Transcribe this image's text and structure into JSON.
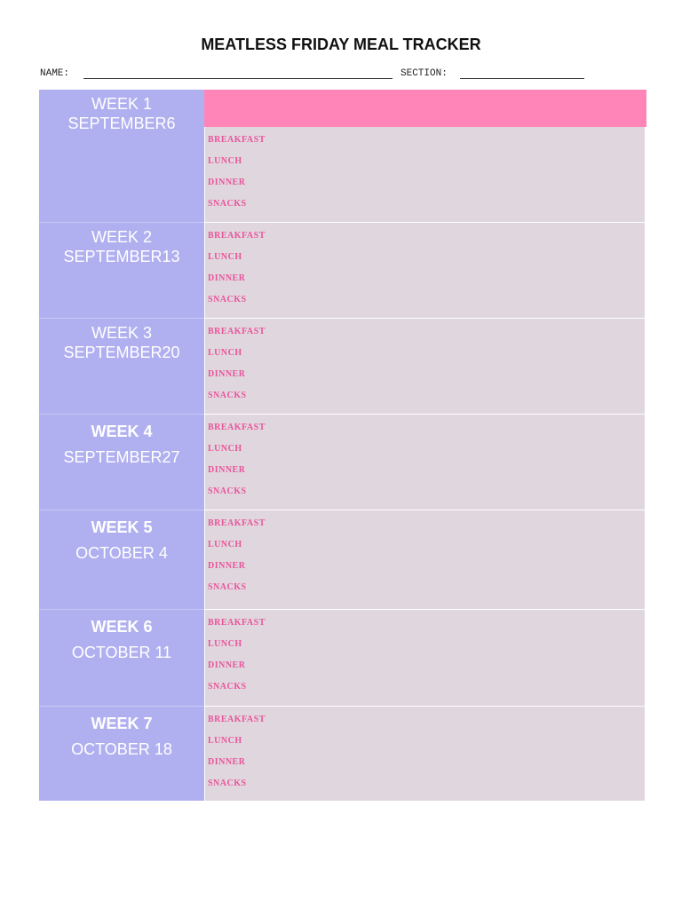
{
  "header": {
    "title": "MEATLESS FRIDAY MEAL TRACKER",
    "name_label": "NAME:",
    "section_label": "SECTION:"
  },
  "weeks": [
    {
      "week": "WEEK 1",
      "date": "SEPTEMBER6",
      "meals": [
        "BREAKFAST",
        "LUNCH",
        "DINNER",
        "SNACKS"
      ]
    },
    {
      "week": "WEEK 2",
      "date": "SEPTEMBER13",
      "meals": [
        "BREAKFAST",
        "LUNCH",
        "DINNER",
        "SNACKS"
      ]
    },
    {
      "week": "WEEK 3",
      "date": "SEPTEMBER20",
      "meals": [
        "BREAKFAST",
        "LUNCH",
        "DINNER",
        "SNACKS"
      ]
    },
    {
      "week": "WEEK 4",
      "date": "SEPTEMBER27",
      "meals": [
        "BREAKFAST",
        "LUNCH",
        "DINNER",
        "SNACKS"
      ]
    },
    {
      "week": "WEEK 5",
      "date": "OCTOBER 4",
      "meals": [
        "BREAKFAST",
        "LUNCH",
        "DINNER",
        "SNACKS"
      ]
    },
    {
      "week": "WEEK 6",
      "date": "OCTOBER 11",
      "meals": [
        "BREAKFAST",
        "LUNCH",
        "DINNER",
        "SNACKS"
      ]
    },
    {
      "week": "WEEK 7",
      "date": "OCTOBER 18",
      "meals": [
        "BREAKFAST",
        "LUNCH",
        "DINNER",
        "SNACKS"
      ]
    }
  ]
}
